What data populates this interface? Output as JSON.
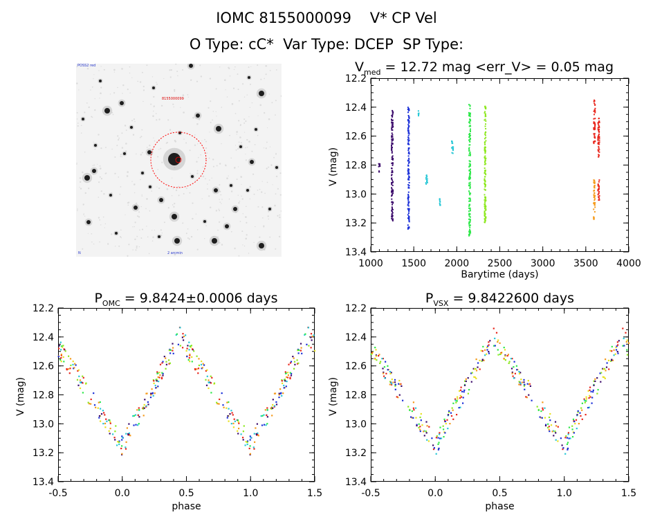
{
  "header": {
    "line1": "IOMC 8155000099    V* CP Vel",
    "line2": "O Type: cC*  Var Type: DCEP  SP Type:"
  },
  "image_panel": {
    "corner_top_left": "POSS2 red",
    "label_red": "8155000099",
    "corner_bottom_left": "N",
    "corner_bottom_center": "2 arcmin",
    "aperture_color": "#ff0000"
  },
  "colors": {
    "rainbow": [
      "#3b0a6b",
      "#1a2fd8",
      "#27c7d6",
      "#2ee84a",
      "#8de81f",
      "#e8e11f",
      "#f59a1a",
      "#e8241a"
    ]
  },
  "chart_data": [
    {
      "type": "scatter",
      "title_main": "V",
      "title_sub": "med",
      "title_rest": " = 12.72 mag <err_V> = 0.05 mag",
      "xlabel": "Barytime (days)",
      "ylabel": "V (mag)",
      "xlim": [
        1000,
        4000
      ],
      "ylim": [
        13.4,
        12.2
      ],
      "y_inverted": true,
      "xticks": [
        "1000",
        "1500",
        "2000",
        "2500",
        "3000",
        "3500",
        "4000"
      ],
      "yticks": [
        "12.2",
        "12.4",
        "12.6",
        "12.8",
        "13.0",
        "13.2",
        "13.4"
      ],
      "groups": [
        {
          "x": 1100,
          "y_min": 12.78,
          "y_max": 12.85,
          "color_index": 0
        },
        {
          "x": 1250,
          "y_min": 12.4,
          "y_max": 13.2,
          "color_index": 0
        },
        {
          "x": 1440,
          "y_min": 12.4,
          "y_max": 13.25,
          "color_index": 1
        },
        {
          "x": 1550,
          "y_min": 12.42,
          "y_max": 12.46,
          "color_index": 2
        },
        {
          "x": 1650,
          "y_min": 12.87,
          "y_max": 12.97,
          "color_index": 2
        },
        {
          "x": 1800,
          "y_min": 13.03,
          "y_max": 13.09,
          "color_index": 2
        },
        {
          "x": 1950,
          "y_min": 12.63,
          "y_max": 12.72,
          "color_index": 2
        },
        {
          "x": 2150,
          "y_min": 12.38,
          "y_max": 13.3,
          "color_index": 3
        },
        {
          "x": 2330,
          "y_min": 12.38,
          "y_max": 13.2,
          "color_index": 4
        },
        {
          "x": 3600,
          "y_min": 12.35,
          "y_max": 12.65,
          "color_index": 7
        },
        {
          "x": 3600,
          "y_min": 12.9,
          "y_max": 13.18,
          "color_index": 6
        },
        {
          "x": 3650,
          "y_min": 12.45,
          "y_max": 12.75,
          "color_index": 7
        },
        {
          "x": 3650,
          "y_min": 12.9,
          "y_max": 13.05,
          "color_index": 7
        }
      ]
    },
    {
      "type": "scatter",
      "title_main": "P",
      "title_sub": "OMC",
      "title_rest": " = 9.8424±0.0006 days",
      "xlabel": "phase",
      "ylabel": "V (mag)",
      "xlim": [
        -0.5,
        1.5
      ],
      "ylim": [
        13.4,
        12.2
      ],
      "y_inverted": true,
      "xticks": [
        "-0.5",
        "0.0",
        "0.5",
        "1.0",
        "1.5"
      ],
      "yticks": [
        "12.2",
        "12.4",
        "12.6",
        "12.8",
        "13.0",
        "13.2",
        "13.4"
      ],
      "light_curve": {
        "max_phase": 0.45,
        "min_phase": 0.0,
        "max_mag": 12.4,
        "min_mag": 13.15
      },
      "points_per_cycle": 200
    },
    {
      "type": "scatter",
      "title_main": "P",
      "title_sub": "VSX",
      "title_rest": " = 9.8422600 days",
      "xlabel": "phase",
      "ylabel": "V (mag)",
      "xlim": [
        -0.5,
        1.5
      ],
      "ylim": [
        13.4,
        12.2
      ],
      "y_inverted": true,
      "xticks": [
        "-0.5",
        "0.0",
        "0.5",
        "1.0",
        "1.5"
      ],
      "yticks": [
        "12.2",
        "12.4",
        "12.6",
        "12.8",
        "13.0",
        "13.2",
        "13.4"
      ],
      "light_curve": {
        "max_phase": 0.45,
        "min_phase": 0.0,
        "max_mag": 12.4,
        "min_mag": 13.15
      },
      "points_per_cycle": 200
    }
  ]
}
